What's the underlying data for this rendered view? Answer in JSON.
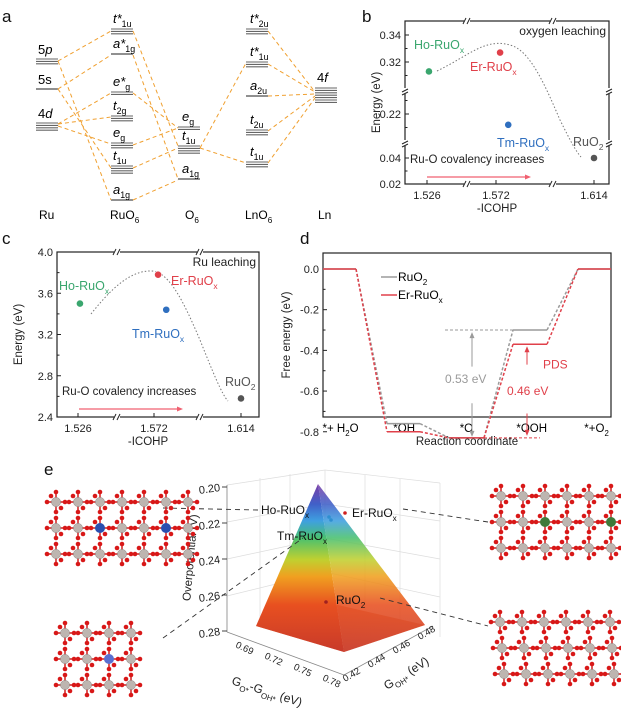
{
  "panel_labels": {
    "a": "a",
    "b": "b",
    "c": "c",
    "d": "d",
    "e": "e"
  },
  "panel_a": {
    "type": "molecular-orbital-diagram",
    "columns": [
      "Ru",
      "RuO6",
      "O6",
      "LnO6",
      "Ln"
    ],
    "column_labels": [
      {
        "main": "Ru",
        "sub": ""
      },
      {
        "main": "RuO",
        "sub": "6"
      },
      {
        "main": "O",
        "sub": "6"
      },
      {
        "main": "LnO",
        "sub": "6"
      },
      {
        "main": "Ln",
        "sub": ""
      }
    ],
    "ru_levels": [
      {
        "main": "5p",
        "sub": ""
      },
      {
        "main": "5s",
        "sub": ""
      },
      {
        "main": "4d",
        "sub": ""
      }
    ],
    "ruo6_levels": [
      {
        "main": "t*",
        "sub": "1u"
      },
      {
        "main": "a*",
        "sub": "1g"
      },
      {
        "main": "e*",
        "sub": "g"
      },
      {
        "main": "t",
        "sub": "2g"
      },
      {
        "main": "e",
        "sub": "g"
      },
      {
        "main": "t",
        "sub": "1u"
      },
      {
        "main": "a",
        "sub": "1g"
      }
    ],
    "o6_levels": [
      {
        "main": "e",
        "sub": "g"
      },
      {
        "main": "t",
        "sub": "1u"
      },
      {
        "main": "a",
        "sub": "1g"
      }
    ],
    "lno6_levels": [
      {
        "main": "t*",
        "sub": "2u"
      },
      {
        "main": "t*",
        "sub": "1u"
      },
      {
        "main": "a",
        "sub": "2u"
      },
      {
        "main": "t",
        "sub": "2u"
      },
      {
        "main": "t",
        "sub": "1u"
      }
    ],
    "ln_levels": [
      {
        "main": "4f",
        "sub": ""
      }
    ],
    "line_color": "#f0a030"
  },
  "chart_data": [
    {
      "id": "b",
      "type": "scatter",
      "title": "oxygen leaching",
      "xlabel": "-ICOHP",
      "ylabel": "Energy (eV)",
      "x_ticks": [
        "1.526",
        "1.572",
        "1.614"
      ],
      "y_ticks": [
        "0.02",
        "0.04",
        "0.22",
        "0.32",
        "0.34"
      ],
      "axis_breaks": "both axes broken",
      "points": [
        {
          "name": "Ho-RuOx",
          "label_main": "Ho-RuO",
          "label_sub": "x",
          "x": 1.529,
          "y": 0.313,
          "color": "#3aa66e"
        },
        {
          "name": "Er-RuOx",
          "label_main": "Er-RuO",
          "label_sub": "x",
          "x": 1.578,
          "y": 0.327,
          "color": "#e0404a"
        },
        {
          "name": "Tm-RuOx",
          "label_main": "Tm-RuO",
          "label_sub": "x",
          "x": 1.59,
          "y": 0.212,
          "color": "#2f6fbf"
        },
        {
          "name": "RuO2",
          "label_main": "RuO",
          "label_sub": "2",
          "x": 1.614,
          "y": 0.04,
          "color": "#555555"
        }
      ],
      "annotation": "Ru-O covalency increases",
      "arrow_color": "#f06070"
    },
    {
      "id": "c",
      "type": "scatter",
      "title": "Ru leaching",
      "xlabel": "-ICOHP",
      "ylabel": "Energy (eV)",
      "x_ticks": [
        "1.526",
        "1.572",
        "1.614"
      ],
      "y_ticks": [
        "2.4",
        "2.8",
        "3.2",
        "3.6",
        "4.0"
      ],
      "ylim": [
        2.4,
        4.0
      ],
      "axis_breaks": "x axis broken",
      "points": [
        {
          "name": "Ho-RuOx",
          "label_main": "Ho-RuO",
          "label_sub": "x",
          "x": 1.529,
          "y": 3.5,
          "color": "#3aa66e"
        },
        {
          "name": "Er-RuOx",
          "label_main": "Er-RuO",
          "label_sub": "x",
          "x": 1.578,
          "y": 3.78,
          "color": "#e0404a"
        },
        {
          "name": "Tm-RuOx",
          "label_main": "Tm-RuO",
          "label_sub": "x",
          "x": 1.59,
          "y": 3.44,
          "color": "#2f6fbf"
        },
        {
          "name": "RuO2",
          "label_main": "RuO",
          "label_sub": "2",
          "x": 1.614,
          "y": 2.58,
          "color": "#555555"
        }
      ],
      "annotation": "Ru-O covalency increases",
      "arrow_color": "#f06070"
    },
    {
      "id": "d",
      "type": "line",
      "title": "",
      "xlabel": "Reaction coordinate",
      "ylabel": "Free energy (eV)",
      "categories": [
        {
          "main": "*+ H",
          "sub": "2",
          "tail": "O"
        },
        {
          "main": "*OH",
          "sub": "",
          "tail": ""
        },
        {
          "main": "*O",
          "sub": "",
          "tail": ""
        },
        {
          "main": "*OOH",
          "sub": "",
          "tail": ""
        },
        {
          "main": "*+O",
          "sub": "2",
          "tail": ""
        }
      ],
      "y_ticks": [
        "0.0",
        "-0.2",
        "-0.4",
        "-0.6",
        "-0.8"
      ],
      "ylim": [
        -0.9,
        0.1
      ],
      "series": [
        {
          "name": "RuO2",
          "legend_main": "RuO",
          "legend_sub": "2",
          "color": "#9a9a9a",
          "values": [
            0.0,
            -0.76,
            -0.83,
            -0.3,
            0.0
          ]
        },
        {
          "name": "Er-RuOx",
          "legend_main": "Er-RuO",
          "legend_sub": "x",
          "color": "#e0404a",
          "values": [
            0.0,
            -0.8,
            -0.83,
            -0.37,
            0.0
          ]
        }
      ],
      "annotations": [
        {
          "text": "0.53 eV",
          "color": "#9a9a9a"
        },
        {
          "text": "0.46 eV",
          "color": "#e0404a"
        },
        {
          "text": "PDS",
          "color": "#e0404a"
        }
      ],
      "legend_position": "top-left"
    },
    {
      "id": "e",
      "type": "surface-3d",
      "zlabel": "Overpotential (V)",
      "xlabel": {
        "main1": "G",
        "sub1": "O*",
        "mid": "-G",
        "sub2": "OH*",
        "tail": " (eV)"
      },
      "ylabel": {
        "main": "G",
        "sub": "OH*",
        "tail": " (eV)"
      },
      "z_ticks": [
        "0.20",
        "0.22",
        "0.24",
        "0.26",
        "0.28"
      ],
      "x_ticks": [
        "0.69",
        "0.72",
        "0.75",
        "0.78"
      ],
      "y_ticks": [
        "0.42",
        "0.44",
        "0.46",
        "0.48"
      ],
      "points": [
        {
          "name": "Ho-RuOx",
          "label_main": "Ho-RuO",
          "label_sub": "x",
          "z": 0.215,
          "color": "#2f8fd0"
        },
        {
          "name": "Er-RuOx",
          "label_main": "Er-RuO",
          "label_sub": "x",
          "z": 0.214,
          "color": "#d02020"
        },
        {
          "name": "Tm-RuOx",
          "label_main": "Tm-RuO",
          "label_sub": "x",
          "z": 0.217,
          "color": "#2f8fd0"
        },
        {
          "name": "RuO2",
          "label_main": "RuO",
          "label_sub": "2",
          "z": 0.262,
          "color": "#a02020"
        }
      ],
      "structures": [
        {
          "name": "Ho-RuOx structure",
          "dopant_color": "#2a4fb0"
        },
        {
          "name": "Tm-RuOx structure",
          "dopant_color": "#5a6fd0"
        },
        {
          "name": "Er-RuOx structure",
          "dopant_color": "#3e7a3a"
        },
        {
          "name": "RuO2 structure",
          "dopant_color": ""
        }
      ]
    }
  ]
}
